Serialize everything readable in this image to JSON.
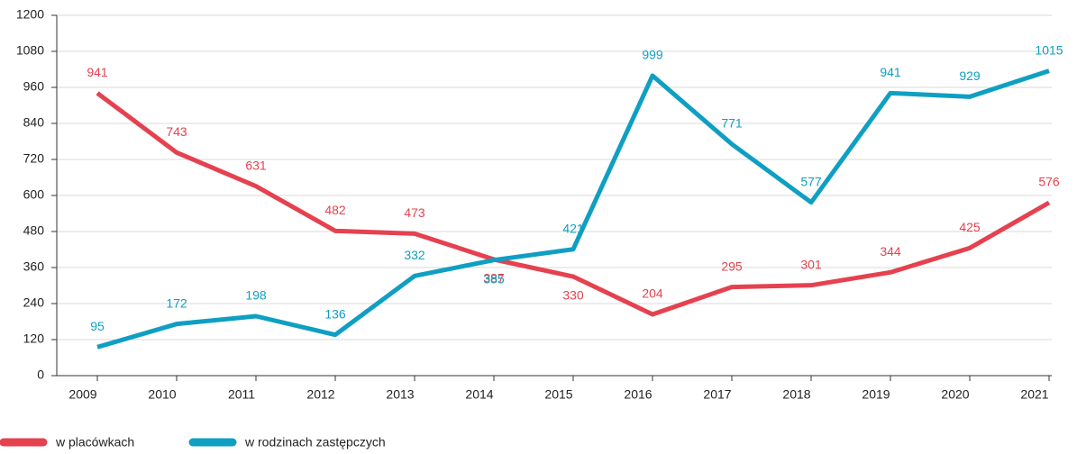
{
  "chart_data": {
    "type": "line",
    "categories": [
      "2009",
      "2010",
      "2011",
      "2012",
      "2013",
      "2014",
      "2015",
      "2016",
      "2017",
      "2018",
      "2019",
      "2020",
      "2021"
    ],
    "series": [
      {
        "name": "w placówkach",
        "color": "#e5414f",
        "values": [
          941,
          743,
          631,
          482,
          473,
          387,
          330,
          204,
          295,
          301,
          344,
          425,
          576
        ]
      },
      {
        "name": "w rodzinach zastępczych",
        "color": "#0f9fc2",
        "values": [
          95,
          172,
          198,
          136,
          332,
          385,
          421,
          999,
          771,
          577,
          941,
          929,
          1015
        ]
      }
    ],
    "ylim": [
      0,
      1200
    ],
    "yticks": [
      0,
      120,
      240,
      360,
      480,
      600,
      720,
      840,
      960,
      1080,
      1200
    ],
    "grid": true,
    "legend": "bottom-left"
  }
}
